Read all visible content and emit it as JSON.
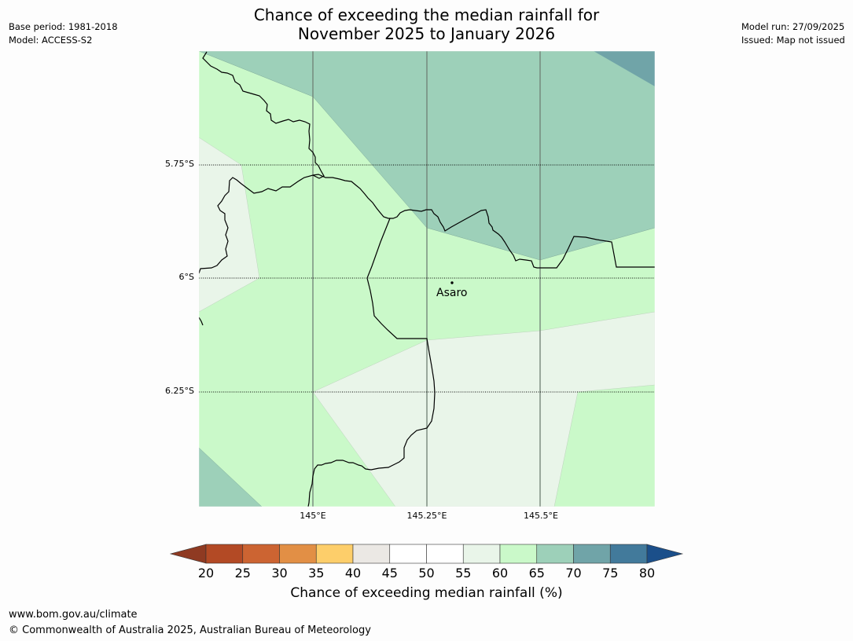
{
  "title_line1": "Chance of exceeding the median rainfall for",
  "title_line2": "November 2025 to January 2026",
  "base_period": "Base period: 1981-2018",
  "model": "Model: ACCESS-S2",
  "model_run": "Model run: 27/09/2025",
  "issued": "Issued: Map not issued",
  "map": {
    "latitudes": [
      "5.75°S",
      "6°S",
      "6.25°S"
    ],
    "longitudes": [
      "145°E",
      "145.25°E",
      "145.5°E"
    ],
    "town": "Asaro"
  },
  "colorbar": {
    "title": "Chance of exceeding median rainfall (%)",
    "ticks": [
      "20",
      "25",
      "30",
      "35",
      "40",
      "45",
      "50",
      "55",
      "60",
      "65",
      "70",
      "75",
      "80"
    ],
    "colors": [
      "#8f3a22",
      "#b34a25",
      "#cc6432",
      "#e28f45",
      "#fdce6a",
      "#ebe8e4",
      "#ffffff",
      "#ffffff",
      "#e9f5e9",
      "#caf9c9",
      "#9dd0b9",
      "#70a4a8",
      "#427a9b",
      "#1b4f8a"
    ]
  },
  "footer_url": "www.bom.gov.au/climate",
  "footer_copyright": "© Commonwealth of Australia 2025, Australian Bureau of Meteorology"
}
